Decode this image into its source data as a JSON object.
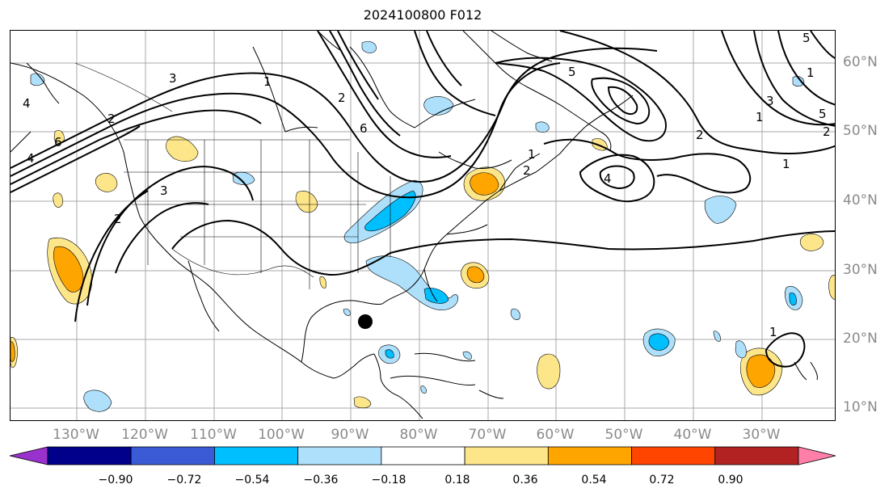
{
  "title": "2024100800 F012",
  "lon_labels": [
    "130°W",
    "120°W",
    "110°W",
    "100°W",
    "90°W",
    "80°W",
    "70°W",
    "60°W",
    "50°W",
    "40°W",
    "30°W"
  ],
  "lat_labels": [
    "60°N",
    "50°N",
    "40°N",
    "30°N",
    "20°N",
    "10°N"
  ],
  "contour_labels": [
    "3",
    "2",
    "4",
    "6",
    "3",
    "2",
    "1",
    "2",
    "4",
    "6",
    "5",
    "3",
    "2",
    "1",
    "5",
    "1",
    "2",
    "1",
    "1",
    "2",
    "5",
    "4",
    "1"
  ],
  "colorbar": {
    "ticks": [
      "−0.90",
      "−0.72",
      "−0.54",
      "−0.36",
      "−0.18",
      "0.18",
      "0.36",
      "0.54",
      "0.72",
      "0.90"
    ],
    "colors": [
      "#9932cc",
      "#00008b",
      "#3b5bd6",
      "#00bfff",
      "#aee0fb",
      "#ffffff",
      "#fde68a",
      "#ffa500",
      "#ff4500",
      "#b22222",
      "#ff7fa8"
    ]
  },
  "storm_marker": "black-dot"
}
